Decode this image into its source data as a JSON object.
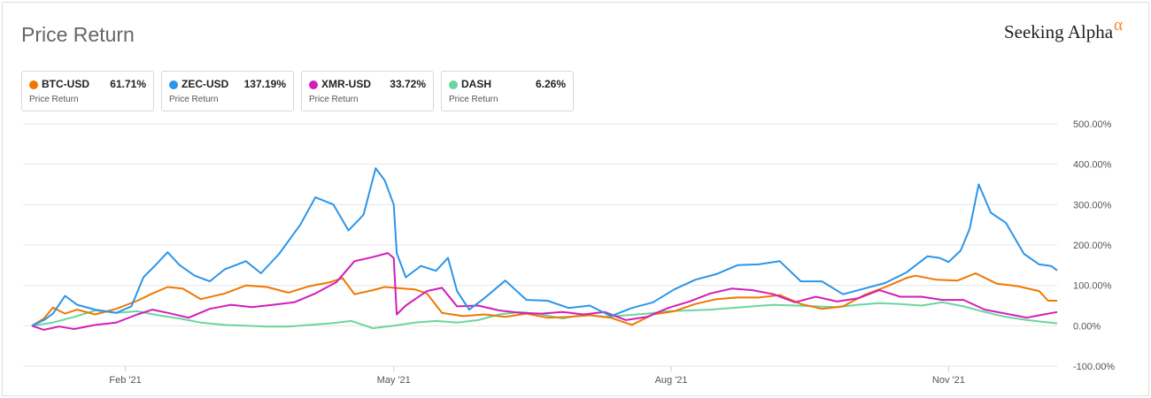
{
  "header": {
    "title": "Price Return",
    "brand": "Seeking Alpha",
    "brand_symbol": "α"
  },
  "legend": [
    {
      "symbol": "BTC-USD",
      "value": "61.71%",
      "sub": "Price Return",
      "color": "#f07800"
    },
    {
      "symbol": "ZEC-USD",
      "value": "137.19%",
      "sub": "Price Return",
      "color": "#2b95ea"
    },
    {
      "symbol": "XMR-USD",
      "value": "33.72%",
      "sub": "Price Return",
      "color": "#d21eb9"
    },
    {
      "symbol": "DASH",
      "value": "6.26%",
      "sub": "Price Return",
      "color": "#6ad69e"
    }
  ],
  "chart_data": {
    "type": "line",
    "x_domain": [
      "2021-01-01",
      "2021-12-07"
    ],
    "ylim": [
      -100,
      500
    ],
    "y_ticks": [
      {
        "value": 500,
        "label": "500.00%"
      },
      {
        "value": 400,
        "label": "400.00%"
      },
      {
        "value": 300,
        "label": "300.00%"
      },
      {
        "value": 200,
        "label": "200.00%"
      },
      {
        "value": 100,
        "label": "100.00%"
      },
      {
        "value": 0,
        "label": "0.00%"
      },
      {
        "value": -100,
        "label": "-100.00%"
      }
    ],
    "x_ticks": [
      {
        "date": "2021-02-01",
        "label": "Feb '21"
      },
      {
        "date": "2021-05-01",
        "label": "May '21"
      },
      {
        "date": "2021-08-01",
        "label": "Aug '21"
      },
      {
        "date": "2021-11-01",
        "label": "Nov '21"
      }
    ],
    "grid": true,
    "y_axis_side": "right",
    "series": [
      {
        "name": "DASH",
        "color": "#6ad69e",
        "points": [
          [
            "2021-01-01",
            0
          ],
          [
            "2021-01-08",
            8
          ],
          [
            "2021-01-15",
            22
          ],
          [
            "2021-01-22",
            38
          ],
          [
            "2021-01-29",
            32
          ],
          [
            "2021-02-05",
            36
          ],
          [
            "2021-02-12",
            26
          ],
          [
            "2021-02-19",
            18
          ],
          [
            "2021-02-26",
            8
          ],
          [
            "2021-03-06",
            2
          ],
          [
            "2021-03-13",
            0
          ],
          [
            "2021-03-20",
            -2
          ],
          [
            "2021-03-27",
            -2
          ],
          [
            "2021-04-03",
            2
          ],
          [
            "2021-04-10",
            6
          ],
          [
            "2021-04-17",
            12
          ],
          [
            "2021-04-24",
            -6
          ],
          [
            "2021-05-01",
            0
          ],
          [
            "2021-05-08",
            8
          ],
          [
            "2021-05-15",
            12
          ],
          [
            "2021-05-22",
            8
          ],
          [
            "2021-05-29",
            14
          ],
          [
            "2021-06-05",
            28
          ],
          [
            "2021-06-12",
            34
          ],
          [
            "2021-06-19",
            28
          ],
          [
            "2021-06-26",
            18
          ],
          [
            "2021-07-03",
            28
          ],
          [
            "2021-07-10",
            22
          ],
          [
            "2021-07-17",
            26
          ],
          [
            "2021-07-24",
            30
          ],
          [
            "2021-07-31",
            36
          ],
          [
            "2021-08-07",
            38
          ],
          [
            "2021-08-14",
            40
          ],
          [
            "2021-08-21",
            44
          ],
          [
            "2021-08-28",
            48
          ],
          [
            "2021-09-04",
            52
          ],
          [
            "2021-09-11",
            50
          ],
          [
            "2021-09-18",
            48
          ],
          [
            "2021-09-25",
            46
          ],
          [
            "2021-10-02",
            52
          ],
          [
            "2021-10-09",
            56
          ],
          [
            "2021-10-16",
            54
          ],
          [
            "2021-10-23",
            50
          ],
          [
            "2021-10-30",
            58
          ],
          [
            "2021-11-06",
            48
          ],
          [
            "2021-11-13",
            34
          ],
          [
            "2021-11-20",
            22
          ],
          [
            "2021-11-27",
            14
          ],
          [
            "2021-12-07",
            6
          ]
        ]
      },
      {
        "name": "BTC-USD",
        "color": "#f07800",
        "points": [
          [
            "2021-01-01",
            0
          ],
          [
            "2021-01-05",
            18
          ],
          [
            "2021-01-08",
            45
          ],
          [
            "2021-01-12",
            30
          ],
          [
            "2021-01-16",
            40
          ],
          [
            "2021-01-22",
            28
          ],
          [
            "2021-01-29",
            42
          ],
          [
            "2021-02-05",
            62
          ],
          [
            "2021-02-10",
            80
          ],
          [
            "2021-02-15",
            96
          ],
          [
            "2021-02-20",
            92
          ],
          [
            "2021-02-26",
            66
          ],
          [
            "2021-03-06",
            80
          ],
          [
            "2021-03-13",
            100
          ],
          [
            "2021-03-20",
            96
          ],
          [
            "2021-03-27",
            82
          ],
          [
            "2021-04-03",
            98
          ],
          [
            "2021-04-10",
            108
          ],
          [
            "2021-04-14",
            118
          ],
          [
            "2021-04-18",
            78
          ],
          [
            "2021-04-24",
            88
          ],
          [
            "2021-04-28",
            96
          ],
          [
            "2021-05-01",
            94
          ],
          [
            "2021-05-08",
            90
          ],
          [
            "2021-05-12",
            80
          ],
          [
            "2021-05-17",
            32
          ],
          [
            "2021-05-24",
            24
          ],
          [
            "2021-05-31",
            28
          ],
          [
            "2021-06-07",
            22
          ],
          [
            "2021-06-14",
            30
          ],
          [
            "2021-06-21",
            20
          ],
          [
            "2021-06-28",
            22
          ],
          [
            "2021-07-05",
            26
          ],
          [
            "2021-07-12",
            20
          ],
          [
            "2021-07-19",
            2
          ],
          [
            "2021-07-26",
            28
          ],
          [
            "2021-08-02",
            36
          ],
          [
            "2021-08-09",
            54
          ],
          [
            "2021-08-16",
            66
          ],
          [
            "2021-08-23",
            70
          ],
          [
            "2021-08-30",
            70
          ],
          [
            "2021-09-06",
            76
          ],
          [
            "2021-09-13",
            54
          ],
          [
            "2021-09-20",
            42
          ],
          [
            "2021-09-27",
            48
          ],
          [
            "2021-10-04",
            76
          ],
          [
            "2021-10-11",
            96
          ],
          [
            "2021-10-18",
            118
          ],
          [
            "2021-10-21",
            124
          ],
          [
            "2021-10-28",
            114
          ],
          [
            "2021-11-04",
            112
          ],
          [
            "2021-11-10",
            130
          ],
          [
            "2021-11-17",
            104
          ],
          [
            "2021-11-24",
            98
          ],
          [
            "2021-12-01",
            86
          ],
          [
            "2021-12-04",
            62
          ],
          [
            "2021-12-07",
            62
          ]
        ]
      },
      {
        "name": "XMR-USD",
        "color": "#d21eb9",
        "points": [
          [
            "2021-01-01",
            0
          ],
          [
            "2021-01-05",
            -10
          ],
          [
            "2021-01-10",
            -2
          ],
          [
            "2021-01-15",
            -8
          ],
          [
            "2021-01-22",
            2
          ],
          [
            "2021-01-29",
            8
          ],
          [
            "2021-02-05",
            28
          ],
          [
            "2021-02-10",
            40
          ],
          [
            "2021-02-15",
            32
          ],
          [
            "2021-02-22",
            20
          ],
          [
            "2021-03-01",
            42
          ],
          [
            "2021-03-08",
            52
          ],
          [
            "2021-03-15",
            46
          ],
          [
            "2021-03-22",
            52
          ],
          [
            "2021-03-29",
            58
          ],
          [
            "2021-04-05",
            80
          ],
          [
            "2021-04-12",
            108
          ],
          [
            "2021-04-18",
            160
          ],
          [
            "2021-04-24",
            170
          ],
          [
            "2021-04-29",
            180
          ],
          [
            "2021-05-01",
            168
          ],
          [
            "2021-05-02",
            28
          ],
          [
            "2021-05-05",
            50
          ],
          [
            "2021-05-12",
            86
          ],
          [
            "2021-05-17",
            94
          ],
          [
            "2021-05-22",
            48
          ],
          [
            "2021-05-29",
            50
          ],
          [
            "2021-06-05",
            38
          ],
          [
            "2021-06-12",
            32
          ],
          [
            "2021-06-19",
            30
          ],
          [
            "2021-06-26",
            34
          ],
          [
            "2021-07-03",
            28
          ],
          [
            "2021-07-10",
            34
          ],
          [
            "2021-07-17",
            14
          ],
          [
            "2021-07-24",
            22
          ],
          [
            "2021-07-31",
            44
          ],
          [
            "2021-08-07",
            60
          ],
          [
            "2021-08-14",
            80
          ],
          [
            "2021-08-21",
            92
          ],
          [
            "2021-08-28",
            88
          ],
          [
            "2021-09-04",
            78
          ],
          [
            "2021-09-11",
            58
          ],
          [
            "2021-09-18",
            72
          ],
          [
            "2021-09-25",
            60
          ],
          [
            "2021-10-02",
            68
          ],
          [
            "2021-10-09",
            88
          ],
          [
            "2021-10-16",
            72
          ],
          [
            "2021-10-23",
            72
          ],
          [
            "2021-10-30",
            64
          ],
          [
            "2021-11-06",
            64
          ],
          [
            "2021-11-13",
            40
          ],
          [
            "2021-11-20",
            30
          ],
          [
            "2021-11-27",
            20
          ],
          [
            "2021-12-01",
            26
          ],
          [
            "2021-12-07",
            34
          ]
        ]
      },
      {
        "name": "ZEC-USD",
        "color": "#2b95ea",
        "points": [
          [
            "2021-01-01",
            0
          ],
          [
            "2021-01-05",
            14
          ],
          [
            "2021-01-08",
            30
          ],
          [
            "2021-01-12",
            74
          ],
          [
            "2021-01-16",
            52
          ],
          [
            "2021-01-22",
            40
          ],
          [
            "2021-01-29",
            32
          ],
          [
            "2021-02-03",
            48
          ],
          [
            "2021-02-07",
            120
          ],
          [
            "2021-02-11",
            150
          ],
          [
            "2021-02-15",
            182
          ],
          [
            "2021-02-19",
            150
          ],
          [
            "2021-02-24",
            124
          ],
          [
            "2021-03-01",
            110
          ],
          [
            "2021-03-06",
            140
          ],
          [
            "2021-03-13",
            160
          ],
          [
            "2021-03-18",
            130
          ],
          [
            "2021-03-24",
            178
          ],
          [
            "2021-03-31",
            250
          ],
          [
            "2021-04-05",
            318
          ],
          [
            "2021-04-11",
            300
          ],
          [
            "2021-04-16",
            236
          ],
          [
            "2021-04-21",
            275
          ],
          [
            "2021-04-25",
            390
          ],
          [
            "2021-04-28",
            360
          ],
          [
            "2021-05-01",
            300
          ],
          [
            "2021-05-02",
            180
          ],
          [
            "2021-05-05",
            120
          ],
          [
            "2021-05-10",
            148
          ],
          [
            "2021-05-15",
            136
          ],
          [
            "2021-05-19",
            168
          ],
          [
            "2021-05-22",
            86
          ],
          [
            "2021-05-26",
            40
          ],
          [
            "2021-05-31",
            68
          ],
          [
            "2021-06-07",
            112
          ],
          [
            "2021-06-14",
            64
          ],
          [
            "2021-06-21",
            62
          ],
          [
            "2021-06-28",
            44
          ],
          [
            "2021-07-05",
            50
          ],
          [
            "2021-07-12",
            24
          ],
          [
            "2021-07-19",
            44
          ],
          [
            "2021-07-26",
            58
          ],
          [
            "2021-08-02",
            90
          ],
          [
            "2021-08-09",
            114
          ],
          [
            "2021-08-16",
            128
          ],
          [
            "2021-08-23",
            150
          ],
          [
            "2021-08-30",
            152
          ],
          [
            "2021-09-06",
            160
          ],
          [
            "2021-09-13",
            110
          ],
          [
            "2021-09-20",
            110
          ],
          [
            "2021-09-27",
            78
          ],
          [
            "2021-10-04",
            92
          ],
          [
            "2021-10-11",
            106
          ],
          [
            "2021-10-18",
            132
          ],
          [
            "2021-10-25",
            172
          ],
          [
            "2021-10-29",
            168
          ],
          [
            "2021-11-01",
            158
          ],
          [
            "2021-11-05",
            186
          ],
          [
            "2021-11-08",
            240
          ],
          [
            "2021-11-11",
            350
          ],
          [
            "2021-11-15",
            280
          ],
          [
            "2021-11-20",
            255
          ],
          [
            "2021-11-26",
            178
          ],
          [
            "2021-12-01",
            152
          ],
          [
            "2021-12-05",
            148
          ],
          [
            "2021-12-07",
            137
          ]
        ]
      }
    ]
  }
}
